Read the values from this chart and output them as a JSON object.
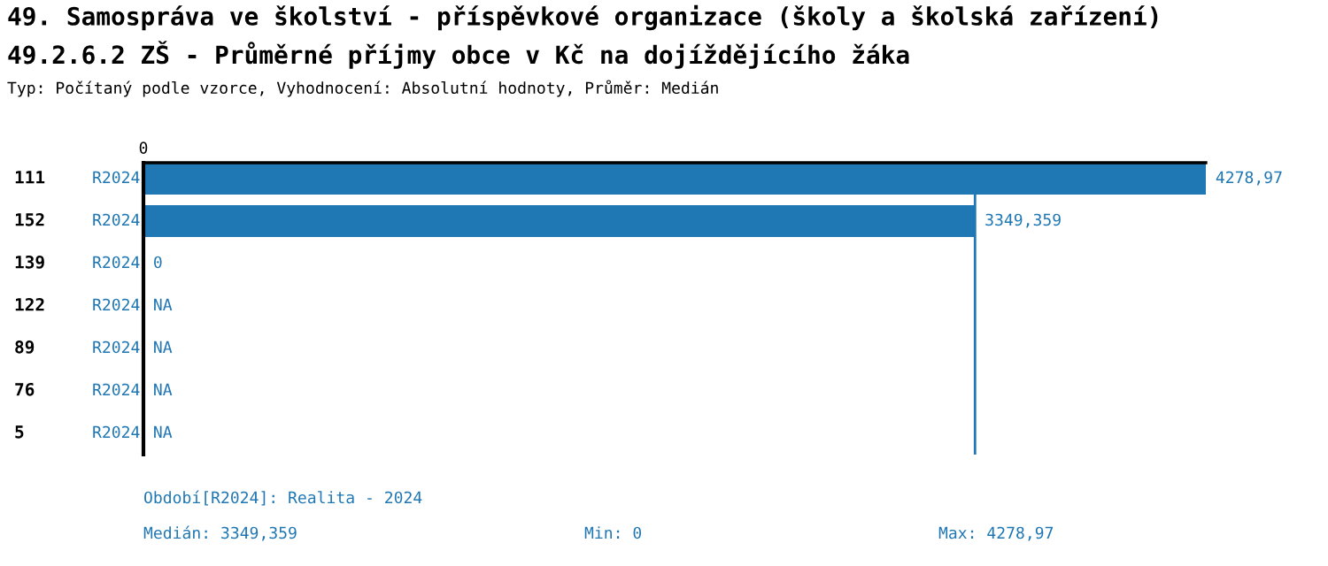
{
  "chart_data": {
    "type": "bar",
    "orientation": "horizontal",
    "title": "49. Samospráva ve školství - příspěvkové organizace (školy a školská zařízení)",
    "subtitle": "49.2.6.2 ZŠ - Průměrné příjmy obce v Kč na dojíždějícího žáka",
    "categories": [
      "111",
      "152",
      "139",
      "122",
      "89",
      "76",
      "5"
    ],
    "series": [
      {
        "name": "R2024",
        "color": "#1f77b4",
        "values": [
          4278.97,
          3349.359,
          0,
          null,
          null,
          null,
          null
        ],
        "value_labels": [
          "4278,97",
          "3349,359",
          "0",
          "NA",
          "NA",
          "NA",
          "NA"
        ]
      }
    ],
    "xlim": [
      0,
      4278.97
    ],
    "ref_lines": [
      {
        "axis": "x",
        "value": 3349.359,
        "color": "#1f77b4"
      }
    ],
    "annotations": [
      "Typ: Počítaný podle vzorce, Vyhodnocení: Absolutní hodnoty, Průměr: Medián",
      "Období[R2024]: Realita - 2024",
      "Medián: 3349,359",
      "Min: 0",
      "Max: 4278,97",
      "0"
    ]
  }
}
